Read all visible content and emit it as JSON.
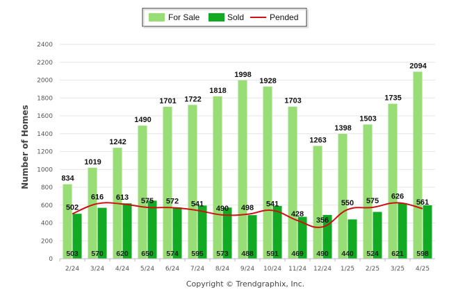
{
  "chart_data": {
    "type": "bar",
    "categories": [
      "2/24",
      "3/24",
      "4/24",
      "5/24",
      "6/24",
      "7/24",
      "8/24",
      "9/24",
      "10/24",
      "11/24",
      "12/24",
      "1/25",
      "2/25",
      "3/25",
      "4/25"
    ],
    "series": [
      {
        "name": "For Sale",
        "type": "bar",
        "color": "#99dd77",
        "values": [
          834,
          1019,
          1242,
          1490,
          1701,
          1722,
          1818,
          1998,
          1928,
          1703,
          1263,
          1398,
          1503,
          1735,
          2094
        ]
      },
      {
        "name": "Sold",
        "type": "bar",
        "color": "#11aa22",
        "values": [
          503,
          570,
          620,
          650,
          574,
          595,
          573,
          488,
          591,
          469,
          490,
          440,
          524,
          621,
          598
        ]
      },
      {
        "name": "Pended",
        "type": "line",
        "color": "#cc1111",
        "values": [
          502,
          616,
          613,
          575,
          572,
          541,
          490,
          498,
          541,
          428,
          356,
          550,
          575,
          626,
          561
        ]
      }
    ],
    "ylabel": "Number of Homes",
    "xlabel": "",
    "ylim": [
      0,
      2400
    ],
    "yticks": [
      0,
      200,
      400,
      600,
      800,
      1000,
      1200,
      1400,
      1600,
      1800,
      2000,
      2200,
      2400
    ],
    "grid": true,
    "legend_position": "top-center"
  },
  "footer": {
    "copyright": "Copyright © Trendgraphix, Inc."
  }
}
